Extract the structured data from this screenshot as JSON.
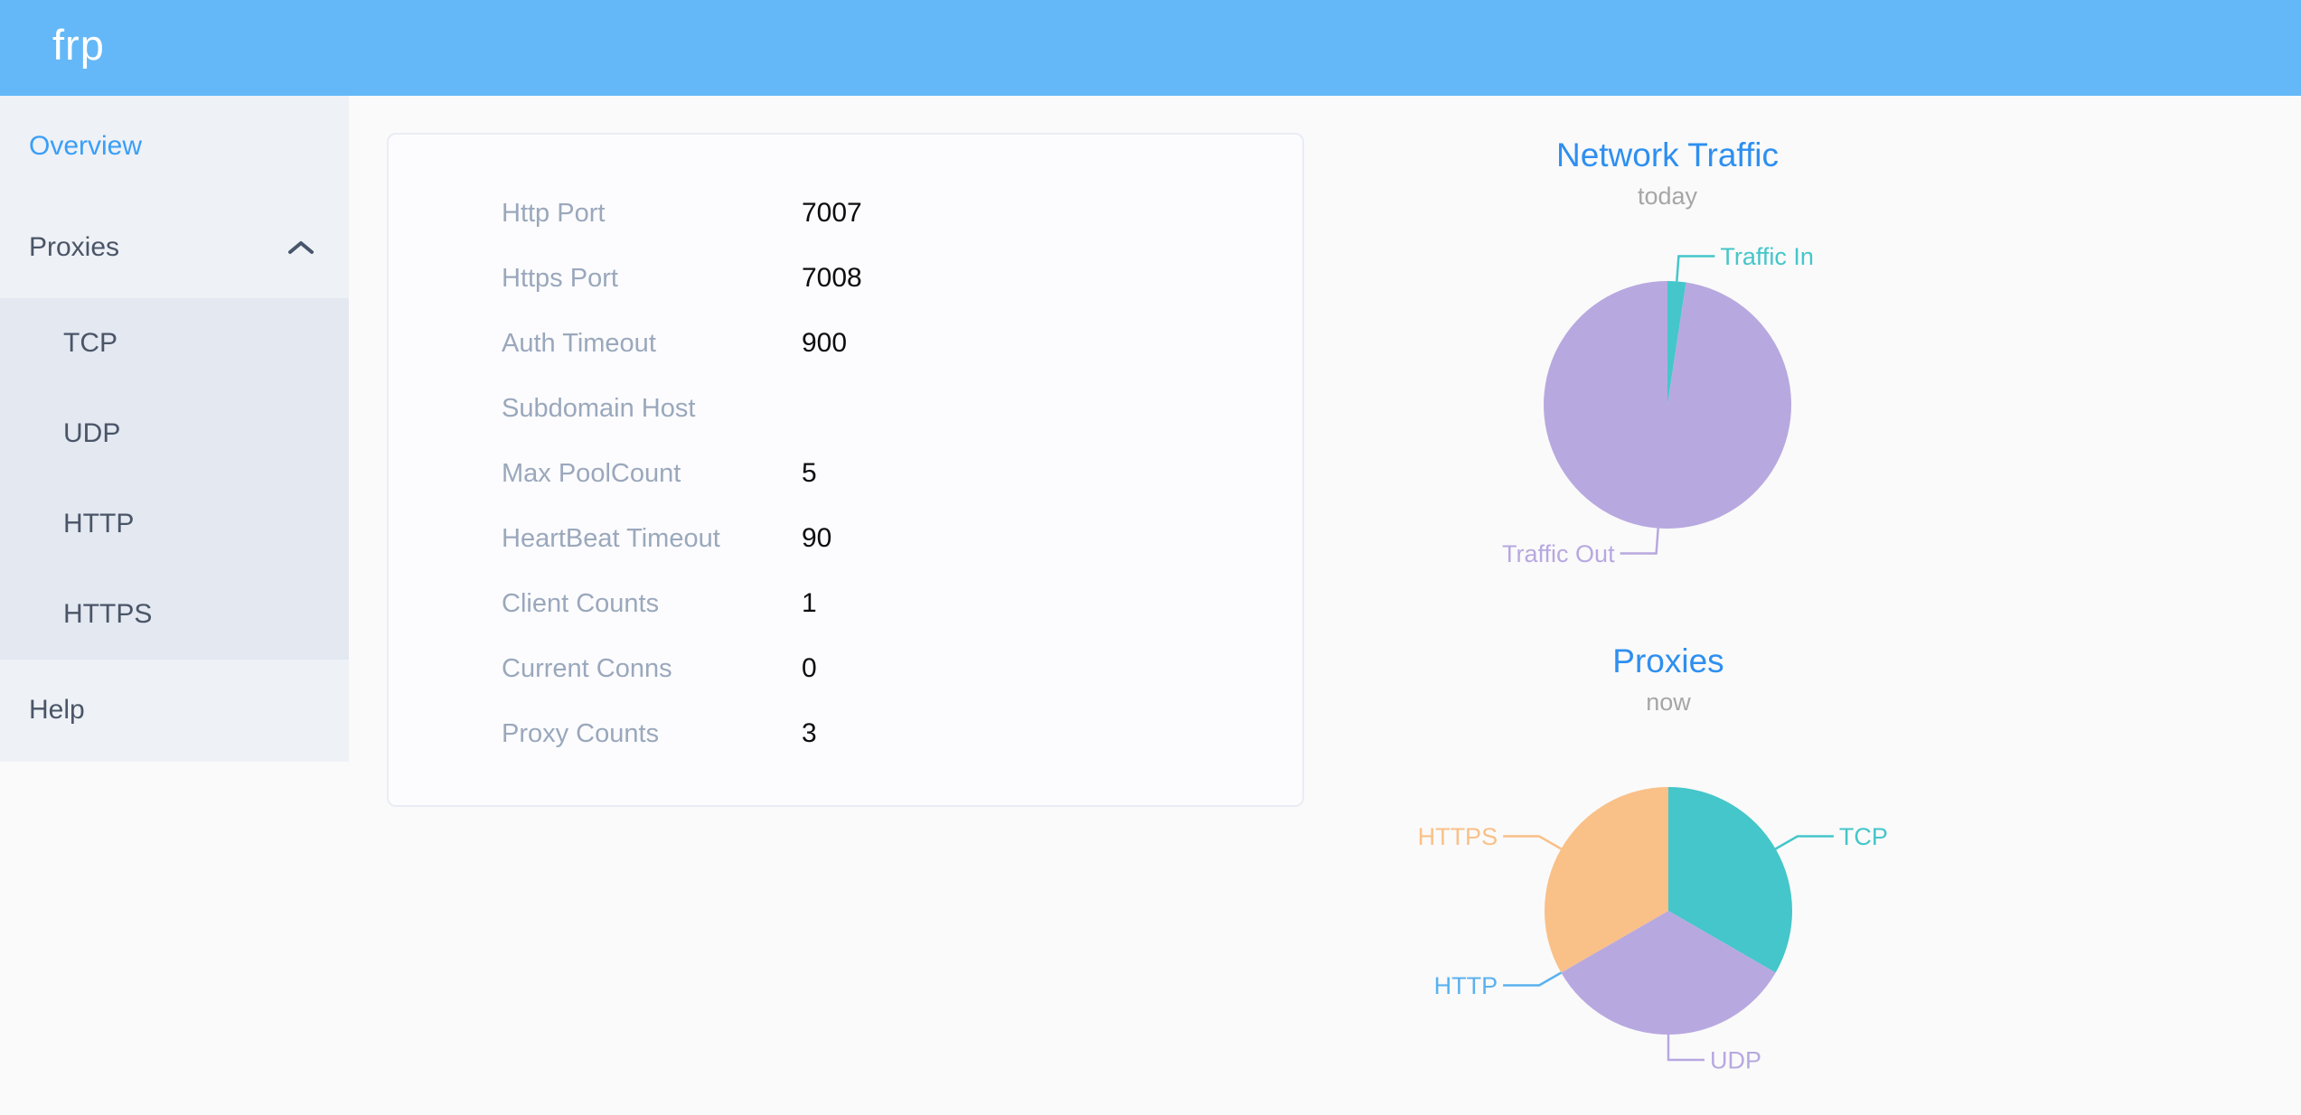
{
  "header": {
    "logo": "frp"
  },
  "sidebar": {
    "overview": "Overview",
    "proxies": "Proxies",
    "proxies_expanded": true,
    "submenu": [
      "TCP",
      "UDP",
      "HTTP",
      "HTTPS"
    ],
    "help": "Help"
  },
  "config": {
    "rows": [
      {
        "label": "Http Port",
        "value": "7007"
      },
      {
        "label": "Https Port",
        "value": "7008"
      },
      {
        "label": "Auth Timeout",
        "value": "900"
      },
      {
        "label": "Subdomain Host",
        "value": ""
      },
      {
        "label": "Max PoolCount",
        "value": "5"
      },
      {
        "label": "HeartBeat Timeout",
        "value": "90"
      },
      {
        "label": "Client Counts",
        "value": "1"
      },
      {
        "label": "Current Conns",
        "value": "0"
      },
      {
        "label": "Proxy Counts",
        "value": "3"
      }
    ]
  },
  "chart_data": [
    {
      "type": "pie",
      "title": "Network Traffic",
      "subtitle": "today",
      "start_angle": "12-o'clock, clockwise",
      "legend_position": "callout-labels",
      "series": [
        {
          "name": "Traffic In",
          "value_percent": 2.4,
          "color": "#44c6ca"
        },
        {
          "name": "Traffic Out",
          "value_percent": 97.6,
          "color": "#b8a8e0"
        }
      ]
    },
    {
      "type": "pie",
      "title": "Proxies",
      "subtitle": "now",
      "start_angle": "12-o'clock, clockwise",
      "legend_position": "callout-labels",
      "series": [
        {
          "name": "TCP",
          "value": 1,
          "color": "#44c6ca"
        },
        {
          "name": "UDP",
          "value": 1,
          "color": "#b8a8e0"
        },
        {
          "name": "HTTP",
          "value": 0,
          "color": "#5ab1ef"
        },
        {
          "name": "HTTPS",
          "value": 1,
          "color": "#f9c088"
        }
      ]
    }
  ],
  "colors": {
    "header_bg": "#64b8f7",
    "sidebar_bg": "#eef1f6",
    "submenu_bg": "#e3e8f1",
    "active_item": "#3a9ef7",
    "chart_title": "#2e8ff0"
  }
}
